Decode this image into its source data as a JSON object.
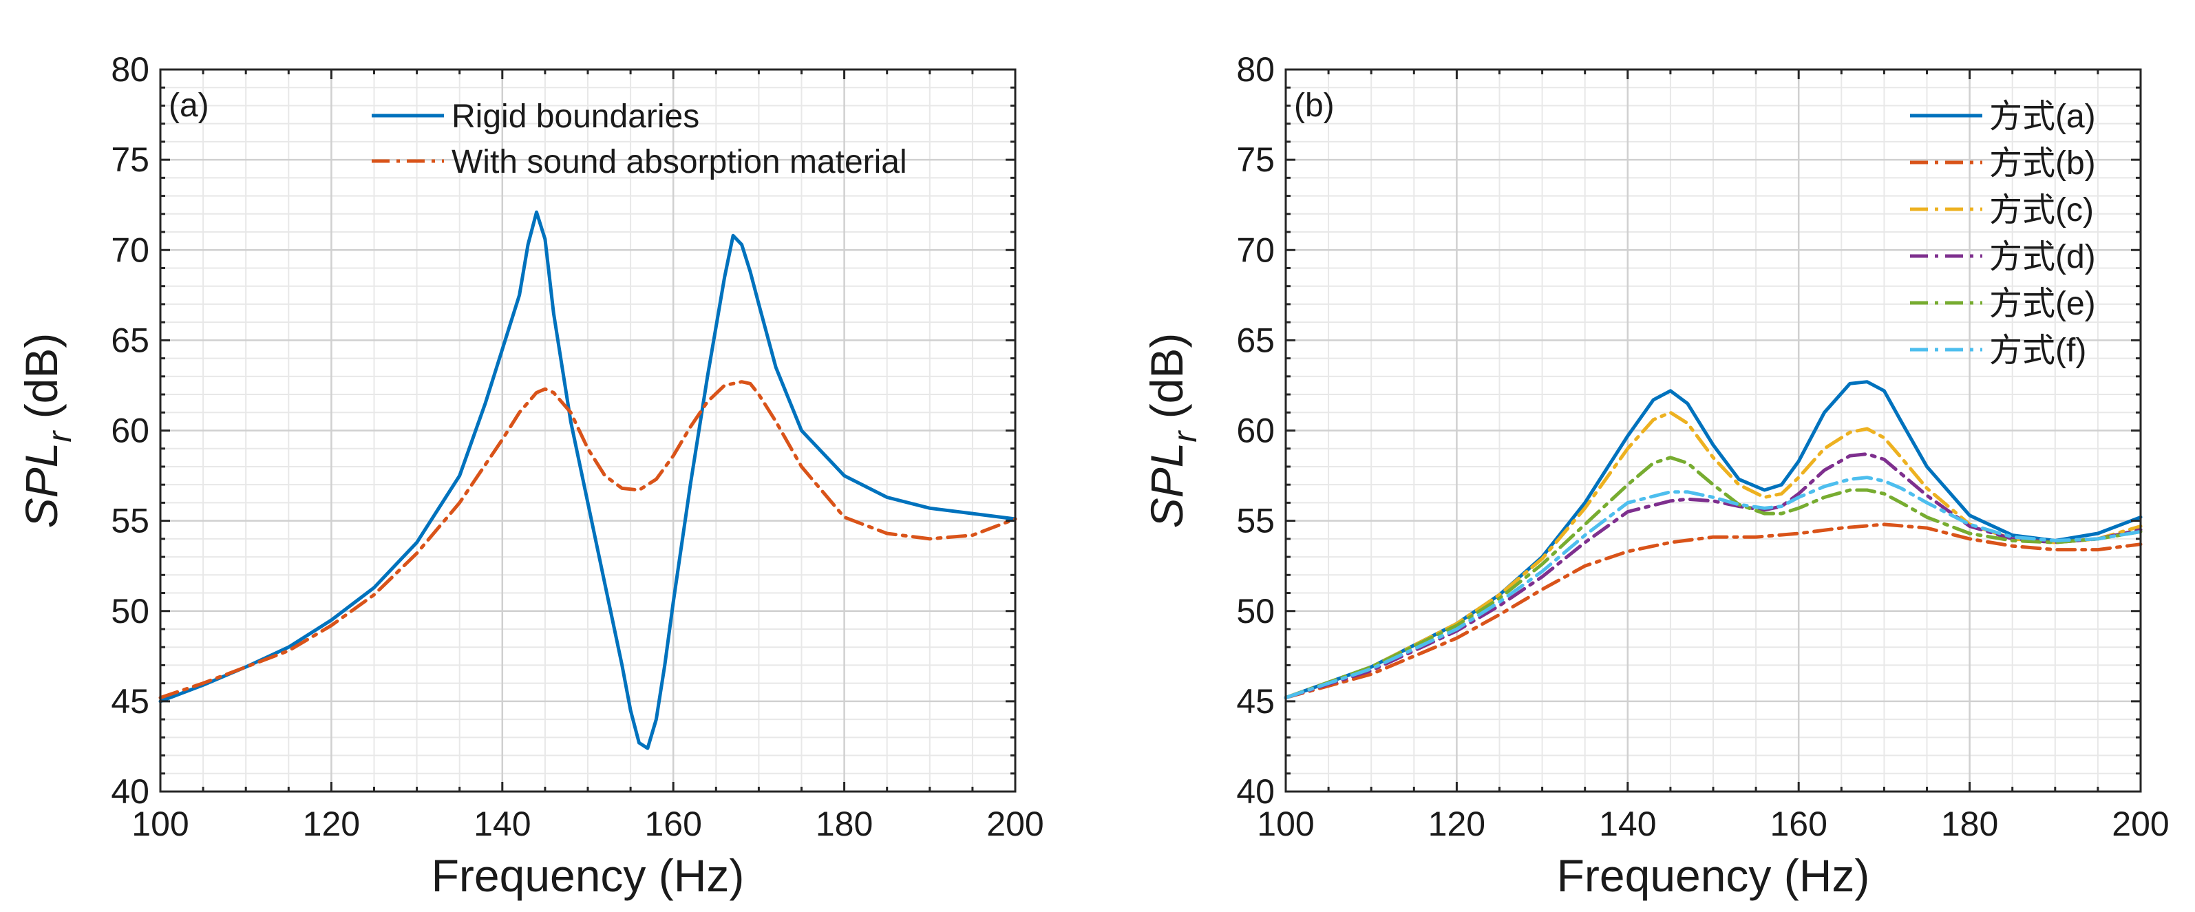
{
  "chart_data": [
    {
      "type": "line",
      "panel_label": "(a)",
      "xlabel": "Frequency (Hz)",
      "ylabel_main": "SPL",
      "ylabel_sub": "r",
      "ylabel_unit": " (dB)",
      "xlim": [
        100,
        200
      ],
      "ylim": [
        40,
        80
      ],
      "xticks": [
        100,
        120,
        140,
        160,
        180,
        200
      ],
      "yticks": [
        40,
        45,
        50,
        55,
        60,
        65,
        70,
        75,
        80
      ],
      "grid": "major and minor",
      "legend_position": "top",
      "series": [
        {
          "name": "Rigid boundaries",
          "color": "#0072BD",
          "dash": "solid",
          "x": [
            100,
            105,
            110,
            115,
            120,
            125,
            130,
            135,
            138,
            140,
            142,
            143,
            144,
            145,
            146,
            148,
            150,
            152,
            154,
            155,
            156,
            157,
            158,
            159,
            160,
            162,
            164,
            166,
            167,
            168,
            169,
            170,
            172,
            175,
            180,
            185,
            190,
            195,
            200
          ],
          "y": [
            45.0,
            45.9,
            46.9,
            48.0,
            49.5,
            51.3,
            53.8,
            57.5,
            61.5,
            64.5,
            67.5,
            70.3,
            72.1,
            70.6,
            66.5,
            60.5,
            56.0,
            51.5,
            47.0,
            44.5,
            42.7,
            42.4,
            44.0,
            47.0,
            50.5,
            57.0,
            63.0,
            68.5,
            70.8,
            70.3,
            68.8,
            67.0,
            63.5,
            60.0,
            57.5,
            56.3,
            55.7,
            55.4,
            55.1
          ]
        },
        {
          "name": "With sound absorption material",
          "color": "#D95319",
          "dash": "dashdot",
          "x": [
            100,
            105,
            110,
            115,
            120,
            125,
            130,
            135,
            140,
            142,
            144,
            145,
            146,
            148,
            150,
            152,
            154,
            156,
            158,
            160,
            162,
            164,
            166,
            168,
            169,
            170,
            172,
            175,
            180,
            185,
            190,
            195,
            200
          ],
          "y": [
            45.2,
            46.0,
            46.9,
            47.8,
            49.2,
            50.9,
            53.2,
            56.0,
            59.5,
            61.0,
            62.1,
            62.3,
            62.1,
            61.0,
            59.0,
            57.5,
            56.8,
            56.7,
            57.3,
            58.6,
            60.2,
            61.6,
            62.5,
            62.7,
            62.6,
            62.0,
            60.5,
            58.0,
            55.2,
            54.3,
            54.0,
            54.2,
            55.1
          ]
        }
      ]
    },
    {
      "type": "line",
      "panel_label": "(b)",
      "xlabel": "Frequency (Hz)",
      "ylabel_main": "SPL",
      "ylabel_sub": "r",
      "ylabel_unit": " (dB)",
      "xlim": [
        100,
        200
      ],
      "ylim": [
        40,
        80
      ],
      "xticks": [
        100,
        120,
        140,
        160,
        180,
        200
      ],
      "yticks": [
        40,
        45,
        50,
        55,
        60,
        65,
        70,
        75,
        80
      ],
      "grid": "major and minor",
      "legend_position": "top-right",
      "series": [
        {
          "name": "方式(a)",
          "color": "#0072BD",
          "dash": "solid",
          "x": [
            100,
            110,
            120,
            125,
            130,
            135,
            140,
            143,
            145,
            147,
            150,
            153,
            156,
            158,
            160,
            163,
            166,
            168,
            170,
            172,
            175,
            180,
            185,
            190,
            195,
            200
          ],
          "y": [
            45.2,
            46.9,
            49.3,
            50.9,
            53.0,
            56.0,
            59.7,
            61.7,
            62.2,
            61.5,
            59.2,
            57.3,
            56.7,
            57.0,
            58.3,
            61.0,
            62.6,
            62.7,
            62.2,
            60.5,
            58.0,
            55.3,
            54.2,
            53.9,
            54.3,
            55.2
          ]
        },
        {
          "name": "方式(b)",
          "color": "#D95319",
          "dash": "dashdot",
          "x": [
            100,
            110,
            120,
            125,
            130,
            135,
            140,
            145,
            150,
            155,
            160,
            165,
            170,
            175,
            180,
            185,
            190,
            195,
            200
          ],
          "y": [
            45.2,
            46.5,
            48.5,
            49.8,
            51.2,
            52.5,
            53.3,
            53.8,
            54.1,
            54.1,
            54.3,
            54.6,
            54.8,
            54.6,
            54.0,
            53.6,
            53.4,
            53.4,
            53.7
          ]
        },
        {
          "name": "方式(c)",
          "color": "#EDB120",
          "dash": "dashdot",
          "x": [
            100,
            110,
            120,
            125,
            130,
            135,
            140,
            143,
            145,
            147,
            150,
            153,
            156,
            158,
            160,
            163,
            166,
            168,
            170,
            172,
            175,
            180,
            185,
            190,
            195,
            200
          ],
          "y": [
            45.2,
            46.9,
            49.3,
            50.9,
            52.9,
            55.7,
            59.0,
            60.6,
            61.0,
            60.4,
            58.5,
            57.0,
            56.3,
            56.5,
            57.4,
            59.0,
            59.9,
            60.1,
            59.6,
            58.5,
            56.8,
            54.8,
            54.0,
            53.8,
            54.0,
            54.7
          ]
        },
        {
          "name": "方式(d)",
          "color": "#7E2F8E",
          "dash": "dashdot",
          "x": [
            100,
            110,
            120,
            125,
            130,
            135,
            140,
            145,
            147,
            150,
            153,
            156,
            158,
            160,
            163,
            166,
            168,
            170,
            172,
            175,
            180,
            185,
            190,
            195,
            200
          ],
          "y": [
            45.2,
            46.7,
            48.9,
            50.3,
            51.9,
            53.8,
            55.5,
            56.1,
            56.2,
            56.1,
            55.8,
            55.6,
            55.8,
            56.5,
            57.8,
            58.6,
            58.7,
            58.4,
            57.6,
            56.4,
            54.7,
            54.0,
            53.8,
            54.0,
            54.5
          ]
        },
        {
          "name": "方式(e)",
          "color": "#77AC30",
          "dash": "dashdot",
          "x": [
            100,
            110,
            120,
            125,
            130,
            135,
            140,
            143,
            145,
            147,
            150,
            153,
            156,
            158,
            160,
            163,
            166,
            168,
            170,
            172,
            175,
            180,
            185,
            190,
            195,
            200
          ],
          "y": [
            45.2,
            46.9,
            49.2,
            50.7,
            52.6,
            54.8,
            57.0,
            58.2,
            58.5,
            58.2,
            57.0,
            55.9,
            55.4,
            55.4,
            55.7,
            56.3,
            56.7,
            56.7,
            56.5,
            56.0,
            55.2,
            54.3,
            53.9,
            53.8,
            54.0,
            54.4
          ]
        },
        {
          "name": "方式(f)",
          "color": "#4DBEEE",
          "dash": "dashdot",
          "x": [
            100,
            110,
            120,
            125,
            130,
            135,
            140,
            145,
            147,
            150,
            153,
            156,
            158,
            160,
            163,
            166,
            168,
            170,
            172,
            175,
            180,
            185,
            190,
            195,
            200
          ],
          "y": [
            45.2,
            46.8,
            49.0,
            50.5,
            52.2,
            54.2,
            56.0,
            56.6,
            56.6,
            56.3,
            55.9,
            55.7,
            55.8,
            56.3,
            56.9,
            57.3,
            57.4,
            57.2,
            56.8,
            56.0,
            54.8,
            54.1,
            53.9,
            54.0,
            54.4
          ]
        }
      ]
    }
  ]
}
